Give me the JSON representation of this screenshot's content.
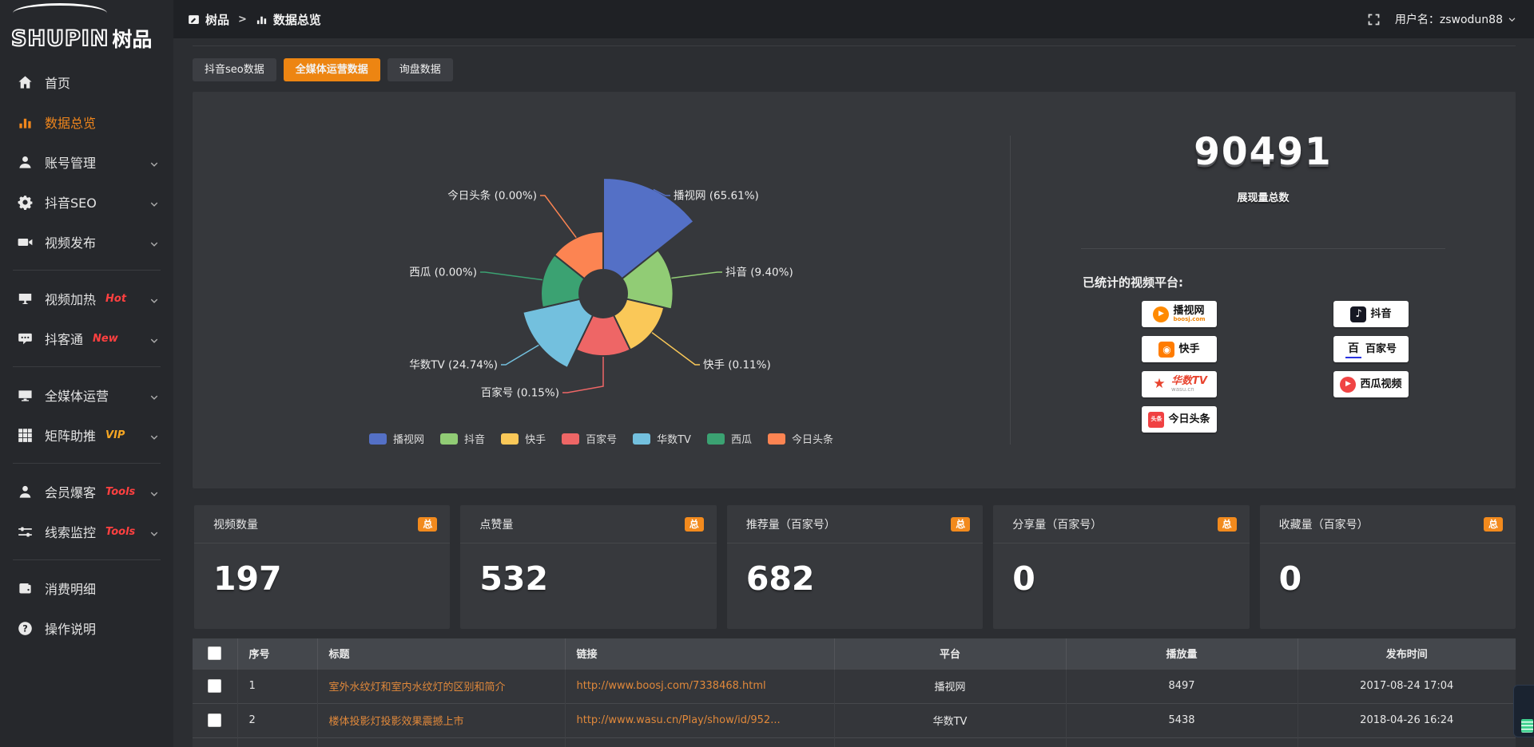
{
  "brand": {
    "logo_primary": "SHUPIN",
    "logo_secondary": "树品"
  },
  "topbar": {
    "breadcrumb": [
      {
        "icon": "panel-icon",
        "label": "树品"
      },
      {
        "icon": "bar-chart-icon",
        "label": "数据总览"
      }
    ],
    "breadcrumb_separator": ">",
    "username": "用户名：zswodun88"
  },
  "sidebar": {
    "items": [
      {
        "icon": "home",
        "label": "首页"
      },
      {
        "icon": "chart",
        "label": "数据总览",
        "active": true
      },
      {
        "icon": "user",
        "label": "账号管理",
        "chevron": true
      },
      {
        "icon": "gear",
        "label": "抖音SEO",
        "chevron": true
      },
      {
        "icon": "video",
        "label": "视频发布",
        "chevron": true
      },
      {
        "divider": true
      },
      {
        "icon": "screen",
        "label": "视频加热",
        "badge": "Hot",
        "badge_color": "#ff4040",
        "chevron": true
      },
      {
        "icon": "chat",
        "label": "抖客通",
        "badge": "New",
        "badge_color": "#ff4040",
        "chevron": true
      },
      {
        "divider": true
      },
      {
        "icon": "monitor",
        "label": "全媒体运营",
        "chevron": true
      },
      {
        "icon": "grid",
        "label": "矩阵助推",
        "badge": "VIP",
        "badge_color": "#f5a623",
        "chevron": true
      },
      {
        "divider": true
      },
      {
        "icon": "member",
        "label": "会员爆客",
        "badge": "Tools",
        "badge_color": "#ff4040",
        "chevron": true
      },
      {
        "icon": "sliders",
        "label": "线索监控",
        "badge": "Tools",
        "badge_color": "#ff4040",
        "chevron": true
      },
      {
        "divider": true
      },
      {
        "icon": "wallet",
        "label": "消费明细"
      },
      {
        "icon": "question",
        "label": "操作说明"
      }
    ]
  },
  "tabs": [
    {
      "label": "抖音seo数据"
    },
    {
      "label": "全媒体运营数据",
      "active": true
    },
    {
      "label": "询盘数据"
    }
  ],
  "chart_data": {
    "type": "pie",
    "subtype": "nightingale-rose-donut",
    "title": "",
    "legend_position": "bottom",
    "label_format": "{name} ({pct}%)",
    "series": [
      {
        "name": "播视网",
        "value_pct": 65.61,
        "color": "#5470c6"
      },
      {
        "name": "抖音",
        "value_pct": 9.4,
        "color": "#91cc75"
      },
      {
        "name": "快手",
        "value_pct": 0.11,
        "color": "#fac858"
      },
      {
        "name": "百家号",
        "value_pct": 0.15,
        "color": "#ee6666"
      },
      {
        "name": "华数TV",
        "value_pct": 24.74,
        "color": "#73c0de"
      },
      {
        "name": "西瓜",
        "value_pct": 0.0,
        "color": "#3ba272"
      },
      {
        "name": "今日头条",
        "value_pct": 0.0,
        "color": "#fc8452"
      }
    ]
  },
  "summary": {
    "total_value": "90491",
    "total_label": "展现量总数",
    "platforms_title": "已统计的视频平台:",
    "platform_columns": [
      [
        {
          "id": "boosj",
          "name": "播视网",
          "sub": "boosj.com"
        },
        {
          "id": "kuaishou",
          "name": "快手",
          "sub": ""
        },
        {
          "id": "wasu",
          "name": "华数TV",
          "sub": "wasu.cn"
        },
        {
          "id": "toutiao",
          "name": "今日头条",
          "sub": ""
        }
      ],
      [
        {
          "id": "douyin",
          "name": "抖音",
          "sub": ""
        },
        {
          "id": "baijia",
          "name": "百家号",
          "sub": ""
        },
        {
          "id": "xigua",
          "name": "西瓜视频",
          "sub": ""
        }
      ]
    ],
    "platform_logo_glyphs": {
      "boosj": "▶",
      "kuaishou": "◉",
      "wasu": "★",
      "toutiao": "头条",
      "douyin": "♪",
      "baijia": "百",
      "xigua": "▶"
    }
  },
  "stat_cards": [
    {
      "title": "视频数量",
      "badge": "总",
      "value": "197"
    },
    {
      "title": "点赞量",
      "badge": "总",
      "value": "532"
    },
    {
      "title": "推荐量（百家号）",
      "badge": "总",
      "value": "682"
    },
    {
      "title": "分享量（百家号）",
      "badge": "总",
      "value": "0"
    },
    {
      "title": "收藏量（百家号）",
      "badge": "总",
      "value": "0"
    }
  ],
  "table": {
    "columns": [
      "序号",
      "标题",
      "链接",
      "平台",
      "播放量",
      "发布时间"
    ],
    "rows": [
      [
        "1",
        "室外水纹灯和室内水纹灯的区别和简介",
        "http://www.boosj.com/7338468.html",
        "播视网",
        "8497",
        "2017-08-24 17:04"
      ],
      [
        "2",
        "楼体投影灯投影效果震撼上市",
        "http://www.wasu.cn/Play/show/id/952...",
        "华数TV",
        "5438",
        "2018-04-26 16:24"
      ],
      [
        "",
        "",
        "",
        "",
        "",
        ""
      ]
    ]
  }
}
